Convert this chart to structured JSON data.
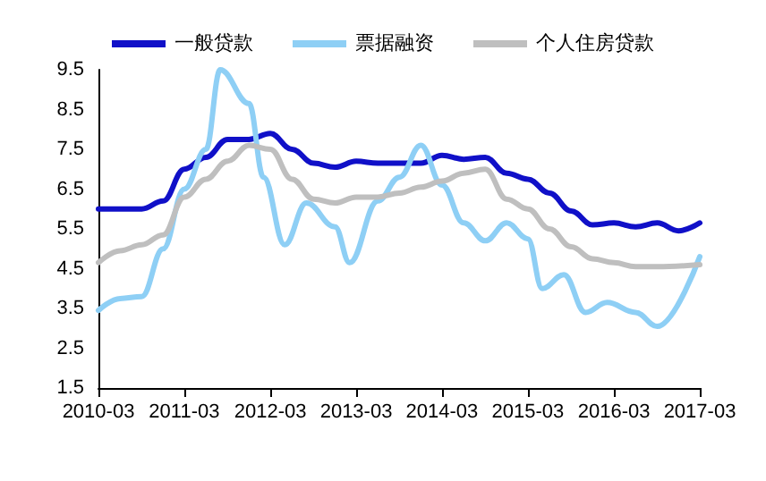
{
  "chart_data": {
    "type": "line",
    "xlim": [
      "2010-03",
      "2017-03"
    ],
    "xticks": [
      "2010-03",
      "2011-03",
      "2012-03",
      "2013-03",
      "2014-03",
      "2015-03",
      "2016-03",
      "2017-03"
    ],
    "ylim": [
      1.5,
      9.5
    ],
    "yticks": [
      1.5,
      2.5,
      3.5,
      4.5,
      5.5,
      6.5,
      7.5,
      8.5,
      9.5
    ],
    "grid": false,
    "legend": "top",
    "marker": "none",
    "line_style": "solid",
    "series": [
      {
        "name": "一般贷款",
        "color": "#1010c8",
        "x": [
          "2010-03",
          "2010-06",
          "2010-09",
          "2010-12",
          "2011-03",
          "2011-06",
          "2011-09",
          "2011-12",
          "2012-03",
          "2012-06",
          "2012-09",
          "2012-12",
          "2013-03",
          "2013-06",
          "2013-09",
          "2013-12",
          "2014-03",
          "2014-06",
          "2014-09",
          "2014-12",
          "2015-03",
          "2015-06",
          "2015-09",
          "2015-12",
          "2016-03",
          "2016-06",
          "2016-09",
          "2016-12",
          "2017-03"
        ],
        "values": [
          6.0,
          6.0,
          6.0,
          6.2,
          7.0,
          7.3,
          7.75,
          7.75,
          7.9,
          7.5,
          7.15,
          7.05,
          7.2,
          7.15,
          7.15,
          7.15,
          7.35,
          7.25,
          7.3,
          6.9,
          6.75,
          6.4,
          5.95,
          5.6,
          5.65,
          5.55,
          5.65,
          5.45,
          5.65
        ]
      },
      {
        "name": "票据融资",
        "color": "#8ecff5",
        "x": [
          "2010-03",
          "2010-06",
          "2010-09",
          "2010-12",
          "2011-03",
          "2011-06",
          "2011-08",
          "2011-12",
          "2012-02",
          "2012-05",
          "2012-08",
          "2012-12",
          "2013-02",
          "2013-06",
          "2013-09",
          "2013-12",
          "2014-03",
          "2014-06",
          "2014-09",
          "2014-12",
          "2015-03",
          "2015-05",
          "2015-08",
          "2015-11",
          "2016-02",
          "2016-06",
          "2016-09",
          "2017-03"
        ],
        "values": [
          3.45,
          3.75,
          3.8,
          5.0,
          6.5,
          7.5,
          9.5,
          8.65,
          6.8,
          5.1,
          6.15,
          5.55,
          4.65,
          6.2,
          6.8,
          7.6,
          6.6,
          5.65,
          5.2,
          5.65,
          5.25,
          4.0,
          4.35,
          3.4,
          3.65,
          3.4,
          3.05,
          4.8
        ]
      },
      {
        "name": "个人住房贷款",
        "color": "#bfbfbf",
        "x": [
          "2010-03",
          "2010-06",
          "2010-09",
          "2010-12",
          "2011-03",
          "2011-06",
          "2011-09",
          "2011-12",
          "2012-03",
          "2012-06",
          "2012-09",
          "2012-12",
          "2013-03",
          "2013-06",
          "2013-09",
          "2013-12",
          "2014-03",
          "2014-06",
          "2014-09",
          "2014-12",
          "2015-03",
          "2015-06",
          "2015-09",
          "2015-12",
          "2016-03",
          "2016-06",
          "2016-09",
          "2017-03"
        ],
        "values": [
          4.65,
          4.95,
          5.1,
          5.35,
          6.3,
          6.75,
          7.2,
          7.6,
          7.5,
          6.75,
          6.25,
          6.15,
          6.3,
          6.3,
          6.4,
          6.55,
          6.7,
          6.9,
          7.0,
          6.25,
          6.0,
          5.5,
          5.05,
          4.75,
          4.65,
          4.55,
          4.55,
          4.6
        ]
      }
    ]
  }
}
